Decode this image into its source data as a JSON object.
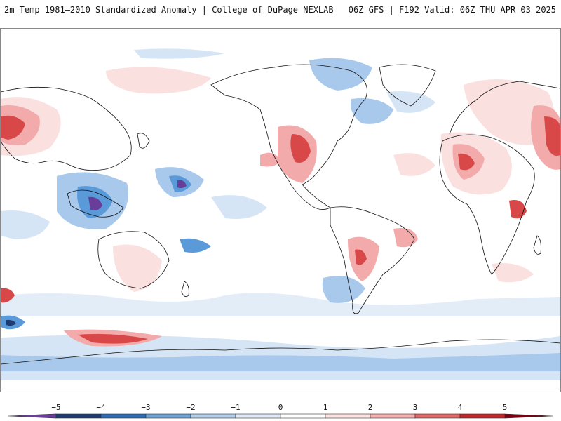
{
  "header": {
    "title_left": "2m Temp 1981–2010 Standardized Anomaly | College of DuPage NEXLAB",
    "title_right": "06Z GFS | F192 Valid: 06Z THU APR 03 2025"
  },
  "colorbar": {
    "labels": [
      "−5",
      "−4",
      "−3",
      "−2",
      "−1",
      "0",
      "1",
      "2",
      "3",
      "4",
      "5"
    ],
    "colors": [
      "#6a3d9a",
      "#1f3a70",
      "#2e6cb3",
      "#6fa3d6",
      "#b3cfec",
      "#dfe9f6",
      "#ffffff",
      "#fde2e2",
      "#f7b0b0",
      "#e46a6a",
      "#c0282b",
      "#7a0012",
      "#f5c400"
    ]
  },
  "map": {
    "colors": {
      "cold_light": "#d6e5f5",
      "cold_mid": "#a9c9ec",
      "cold_strong": "#5b9ad9",
      "cold_extreme": "#6a3d9a",
      "warm_light": "#fbe0e0",
      "warm_mid": "#f2aaaa",
      "warm_strong": "#d94848",
      "warm_extreme": "#8b0a1a",
      "coastline": "#111111"
    }
  }
}
